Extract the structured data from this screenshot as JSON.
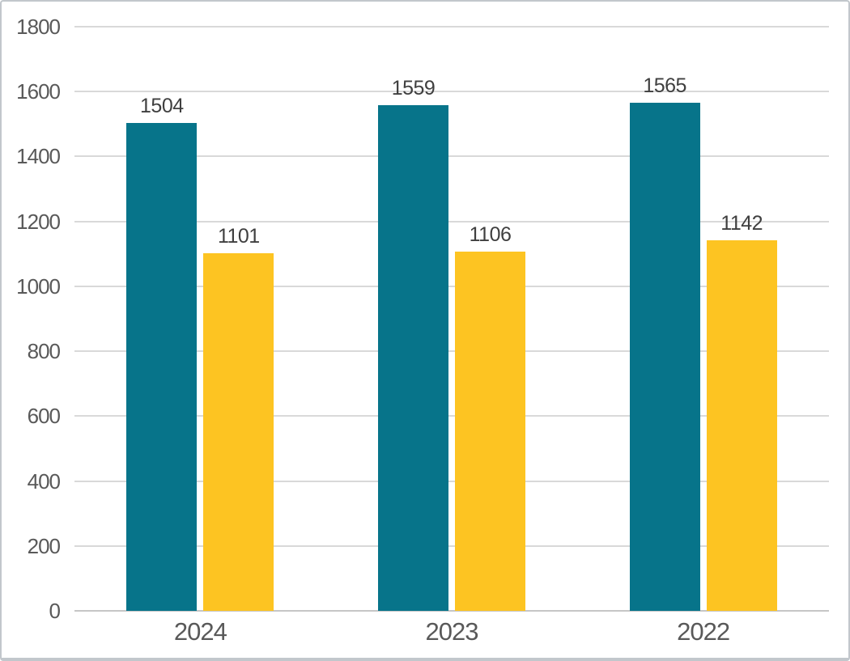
{
  "chart_data": {
    "type": "bar",
    "title": "",
    "xlabel": "",
    "ylabel": "",
    "categories": [
      "2024",
      "2023",
      "2022"
    ],
    "series": [
      {
        "name": "teal-series",
        "color": "#07748A",
        "values": [
          1504,
          1559,
          1565
        ]
      },
      {
        "name": "gold-series",
        "color": "#FDC422",
        "values": [
          1101,
          1106,
          1142
        ]
      }
    ],
    "ylim": [
      0,
      1800
    ],
    "ytick_step": 200,
    "yticks": [
      1800,
      1600,
      1400,
      1200,
      1000,
      800,
      600,
      400,
      200,
      0
    ],
    "grid": true,
    "legend": "none",
    "bar_value_labels_visible": true
  },
  "style": {
    "background": "#FFFFFF",
    "gridline_color": "#D9D9D9",
    "axis_line_color": "#C6C6C6",
    "tick_label_color": "#595959",
    "category_label_color": "#595959",
    "value_label_color": "#3F3F3F",
    "frame_border_color": "#C2C7CC",
    "bar_teal": "#07748A",
    "bar_gold": "#FDC422"
  }
}
